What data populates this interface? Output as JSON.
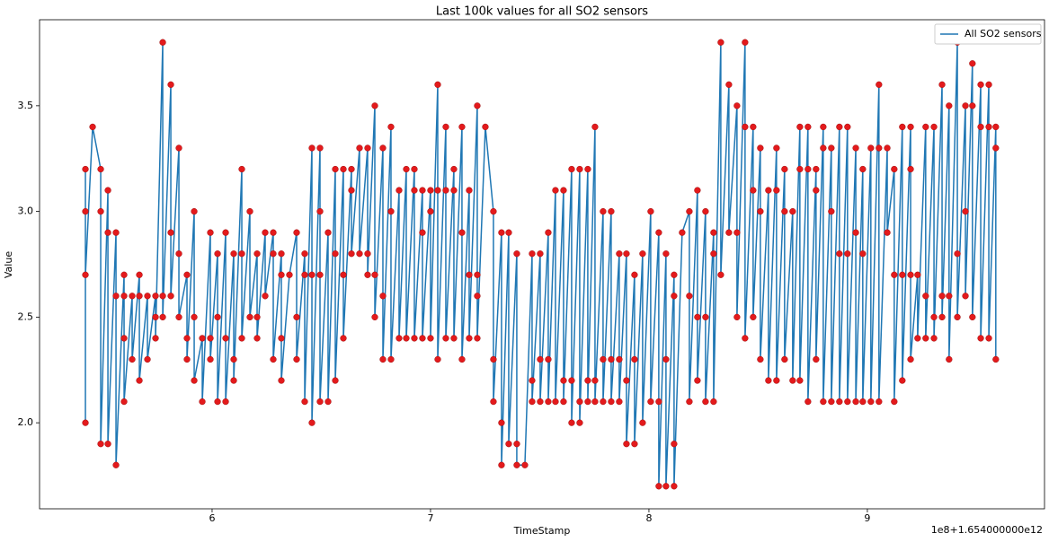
{
  "chart_data": {
    "type": "line",
    "title": "Last 100k values for all SO2 sensors",
    "x_label": "TimeStamp",
    "y_label": "Value",
    "x_offset_label": "1e8+1.654000000e12",
    "legend": "upper right",
    "xlim": [
      5.21,
      9.811
    ],
    "ylim": [
      1.593,
      3.907
    ],
    "xticks": [
      6,
      7,
      8,
      9
    ],
    "yticks": [
      {
        "value": 2,
        "label": "2.0"
      },
      {
        "value": 2.5,
        "label": "2.5"
      },
      {
        "value": 3,
        "label": "3.0"
      },
      {
        "value": 3.5,
        "label": "3.5"
      }
    ],
    "x": [
      5.42,
      5.42,
      5.42,
      5.42,
      5.453,
      5.49,
      5.49,
      5.49,
      5.523,
      5.523,
      5.523,
      5.56,
      5.56,
      5.56,
      5.597,
      5.597,
      5.597,
      5.597,
      5.634,
      5.634,
      5.667,
      5.667,
      5.667,
      5.704,
      5.704,
      5.741,
      5.741,
      5.741,
      5.774,
      5.774,
      5.774,
      5.811,
      5.811,
      5.811,
      5.848,
      5.848,
      5.848,
      5.885,
      5.885,
      5.885,
      5.918,
      5.918,
      5.918,
      5.955,
      5.955,
      5.992,
      5.992,
      5.992,
      6.025,
      6.025,
      6.025,
      6.062,
      6.062,
      6.062,
      6.099,
      6.099,
      6.099,
      6.136,
      6.136,
      6.136,
      6.173,
      6.173,
      6.206,
      6.206,
      6.206,
      6.243,
      6.243,
      6.28,
      6.28,
      6.28,
      6.317,
      6.317,
      6.317,
      6.317,
      6.354,
      6.387,
      6.387,
      6.387,
      6.424,
      6.424,
      6.424,
      6.457,
      6.457,
      6.457,
      6.494,
      6.494,
      6.494,
      6.494,
      6.531,
      6.531,
      6.564,
      6.564,
      6.564,
      6.601,
      6.601,
      6.601,
      6.638,
      6.638,
      6.638,
      6.675,
      6.675,
      6.712,
      6.712,
      6.712,
      6.745,
      6.745,
      6.745,
      6.782,
      6.782,
      6.782,
      6.819,
      6.819,
      6.819,
      6.856,
      6.856,
      6.889,
      6.889,
      6.926,
      6.926,
      6.926,
      6.963,
      6.963,
      6.963,
      7.0,
      7.0,
      7.0,
      7.033,
      7.033,
      7.033,
      7.07,
      7.07,
      7.07,
      7.107,
      7.107,
      7.107,
      7.144,
      7.144,
      7.144,
      7.177,
      7.177,
      7.177,
      7.214,
      7.214,
      7.214,
      7.214,
      7.251,
      7.288,
      7.288,
      7.288,
      7.325,
      7.325,
      7.325,
      7.358,
      7.358,
      7.395,
      7.395,
      7.395,
      7.432,
      7.465,
      7.465,
      7.465,
      7.502,
      7.502,
      7.502,
      7.539,
      7.539,
      7.539,
      7.572,
      7.572,
      7.609,
      7.609,
      7.609,
      7.646,
      7.646,
      7.646,
      7.683,
      7.683,
      7.683,
      7.72,
      7.72,
      7.72,
      7.753,
      7.753,
      7.753,
      7.79,
      7.79,
      7.79,
      7.827,
      7.827,
      7.827,
      7.864,
      7.864,
      7.864,
      7.897,
      7.897,
      7.897,
      7.934,
      7.934,
      7.934,
      7.971,
      7.971,
      8.008,
      8.008,
      8.045,
      8.045,
      8.045,
      8.078,
      8.078,
      8.078,
      8.115,
      8.115,
      8.115,
      8.115,
      8.152,
      8.185,
      8.185,
      8.185,
      8.222,
      8.222,
      8.222,
      8.259,
      8.259,
      8.259,
      8.296,
      8.296,
      8.296,
      8.329,
      8.329,
      8.366,
      8.366,
      8.403,
      8.403,
      8.403,
      8.44,
      8.44,
      8.44,
      8.477,
      8.477,
      8.477,
      8.51,
      8.51,
      8.51,
      8.547,
      8.547,
      8.584,
      8.584,
      8.584,
      8.621,
      8.621,
      8.621,
      8.658,
      8.658,
      8.691,
      8.691,
      8.691,
      8.728,
      8.728,
      8.728,
      8.765,
      8.765,
      8.765,
      8.798,
      8.798,
      8.798,
      8.835,
      8.835,
      8.835,
      8.872,
      8.872,
      8.872,
      8.909,
      8.909,
      8.909,
      8.947,
      8.947,
      8.947,
      8.979,
      8.979,
      8.979,
      9.016,
      9.016,
      9.053,
      9.053,
      9.053,
      9.091,
      9.091,
      9.123,
      9.123,
      9.123,
      9.16,
      9.16,
      9.16,
      9.198,
      9.198,
      9.198,
      9.198,
      9.23,
      9.23,
      9.267,
      9.267,
      9.267,
      9.305,
      9.305,
      9.305,
      9.342,
      9.342,
      9.342,
      9.374,
      9.374,
      9.374,
      9.412,
      9.412,
      9.412,
      9.449,
      9.449,
      9.449,
      9.481,
      9.481,
      9.481,
      9.519,
      9.519,
      9.519,
      9.556,
      9.556,
      9.556,
      9.588,
      9.588,
      9.588
    ],
    "series": [
      {
        "name": "All SO2 sensors",
        "color": "#1f77b4",
        "marker_color": "#e31a1c",
        "values": [
          3.2,
          2.0,
          3.0,
          2.7,
          3.4,
          3.2,
          3.0,
          1.9,
          3.1,
          2.9,
          1.9,
          2.9,
          2.6,
          1.8,
          2.7,
          2.6,
          2.4,
          2.1,
          2.6,
          2.3,
          2.7,
          2.6,
          2.2,
          2.6,
          2.3,
          2.6,
          2.5,
          2.4,
          3.8,
          2.6,
          2.5,
          3.6,
          2.9,
          2.6,
          3.3,
          2.8,
          2.5,
          2.7,
          2.4,
          2.3,
          3.0,
          2.5,
          2.2,
          2.4,
          2.1,
          2.9,
          2.4,
          2.3,
          2.8,
          2.5,
          2.1,
          2.9,
          2.4,
          2.1,
          2.8,
          2.3,
          2.2,
          3.2,
          2.8,
          2.4,
          3.0,
          2.5,
          2.8,
          2.5,
          2.4,
          2.9,
          2.6,
          2.9,
          2.8,
          2.3,
          2.8,
          2.7,
          2.4,
          2.2,
          2.7,
          2.9,
          2.5,
          2.3,
          2.8,
          2.7,
          2.1,
          3.3,
          2.7,
          2.0,
          3.3,
          3.0,
          2.7,
          2.1,
          2.9,
          2.1,
          3.2,
          2.8,
          2.2,
          3.2,
          2.7,
          2.4,
          3.2,
          3.1,
          2.8,
          3.3,
          2.8,
          3.3,
          2.8,
          2.7,
          3.5,
          2.7,
          2.5,
          3.3,
          2.6,
          2.3,
          3.4,
          3.0,
          2.3,
          3.1,
          2.4,
          3.2,
          2.4,
          3.2,
          3.1,
          2.4,
          3.1,
          2.9,
          2.4,
          3.1,
          3.0,
          2.4,
          3.6,
          3.1,
          2.3,
          3.4,
          3.1,
          2.4,
          3.2,
          3.1,
          2.4,
          3.4,
          2.9,
          2.3,
          3.1,
          2.7,
          2.4,
          3.5,
          2.7,
          2.6,
          2.4,
          3.4,
          3.0,
          2.3,
          2.1,
          2.9,
          2.0,
          1.8,
          2.9,
          1.9,
          2.8,
          1.9,
          1.8,
          1.8,
          2.8,
          2.2,
          2.1,
          2.8,
          2.3,
          2.1,
          2.9,
          2.3,
          2.1,
          3.1,
          2.1,
          3.1,
          2.2,
          2.1,
          3.2,
          2.2,
          2.0,
          3.2,
          2.1,
          2.0,
          3.2,
          2.2,
          2.1,
          3.4,
          2.2,
          2.1,
          3.0,
          2.3,
          2.1,
          3.0,
          2.3,
          2.1,
          2.8,
          2.3,
          2.1,
          2.8,
          2.2,
          1.9,
          2.7,
          2.3,
          1.9,
          2.8,
          2.0,
          3.0,
          2.1,
          2.9,
          2.1,
          1.7,
          2.8,
          2.3,
          1.7,
          2.7,
          2.6,
          1.9,
          1.7,
          2.9,
          3.0,
          2.6,
          2.1,
          3.1,
          2.5,
          2.2,
          3.0,
          2.5,
          2.1,
          2.9,
          2.8,
          2.1,
          3.8,
          2.7,
          3.6,
          2.9,
          3.5,
          2.9,
          2.5,
          3.8,
          3.4,
          2.4,
          3.4,
          3.1,
          2.5,
          3.3,
          3.0,
          2.3,
          3.1,
          2.2,
          3.3,
          3.1,
          2.2,
          3.2,
          3.0,
          2.3,
          3.0,
          2.2,
          3.4,
          3.2,
          2.2,
          3.4,
          3.2,
          2.1,
          3.2,
          3.1,
          2.3,
          3.4,
          3.3,
          2.1,
          3.3,
          3.0,
          2.1,
          3.4,
          2.8,
          2.1,
          3.4,
          2.8,
          2.1,
          3.3,
          2.9,
          2.1,
          3.2,
          2.8,
          2.1,
          3.3,
          2.1,
          3.6,
          3.3,
          2.1,
          3.3,
          2.9,
          3.2,
          2.7,
          2.1,
          3.4,
          2.7,
          2.2,
          3.4,
          3.2,
          2.7,
          2.3,
          2.7,
          2.4,
          3.4,
          2.6,
          2.4,
          3.4,
          2.5,
          2.4,
          3.6,
          2.6,
          2.5,
          3.5,
          2.6,
          2.3,
          3.8,
          2.8,
          2.5,
          3.5,
          3.0,
          2.6,
          3.7,
          3.5,
          2.5,
          3.6,
          3.4,
          2.4,
          3.6,
          3.4,
          2.4,
          3.4,
          3.3,
          2.3
        ]
      }
    ]
  }
}
